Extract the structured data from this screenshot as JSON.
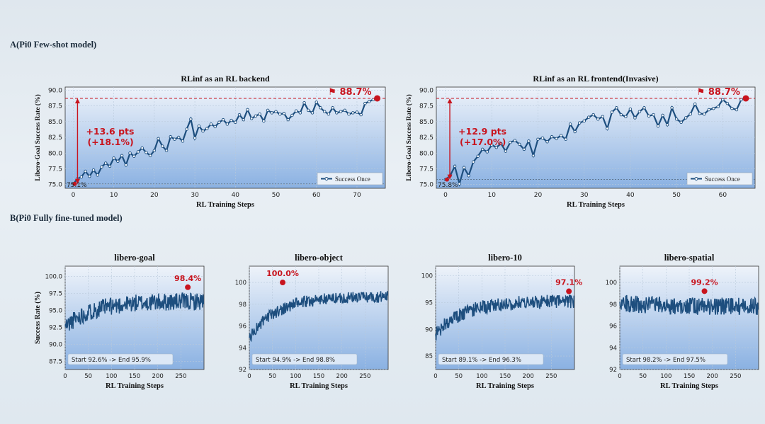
{
  "sections": {
    "a_title": "A(Pi0 Few-shot model)",
    "b_title": "B(Pi0 Fully fine-tuned model)"
  },
  "colors": {
    "line": "#1d4e7e",
    "red": "#c8141e",
    "bg_top": "#eef3fa",
    "bg_bottom": "#8ab1e2"
  },
  "chart_data": [
    {
      "type": "line",
      "title": "RLinf as an RL backend",
      "xlabel": "RL Training Steps",
      "ylabel": "Libero-Goal Success Rate (%)",
      "xlim": [
        -2,
        77
      ],
      "ylim": [
        74.4,
        90.5
      ],
      "xticks": [
        0,
        10,
        20,
        30,
        40,
        50,
        60,
        70
      ],
      "yticks": [
        75.0,
        77.5,
        80.0,
        82.5,
        85.0,
        87.5,
        90.0
      ],
      "legend": "Success Once",
      "legend_position": "lower-right",
      "peak_label": "⚑ 88.7%",
      "peak": [
        75,
        88.7
      ],
      "start_label": "75.1%",
      "start_value": 75.1,
      "end_value": 88.7,
      "gain_line1": "+13.6 pts",
      "gain_line2": "(+18.1%)",
      "x": [
        0,
        1,
        2,
        3,
        4,
        5,
        6,
        7,
        8,
        9,
        10,
        11,
        12,
        13,
        14,
        15,
        16,
        17,
        18,
        19,
        20,
        21,
        22,
        23,
        24,
        25,
        26,
        27,
        28,
        29,
        30,
        31,
        32,
        33,
        34,
        35,
        36,
        37,
        38,
        39,
        40,
        41,
        42,
        43,
        44,
        45,
        46,
        47,
        48,
        49,
        50,
        51,
        52,
        53,
        54,
        55,
        56,
        57,
        58,
        59,
        60,
        61,
        62,
        63,
        64,
        65,
        66,
        67,
        68,
        69,
        70,
        71,
        72,
        73,
        74,
        75
      ],
      "y": [
        75.1,
        75.9,
        76.2,
        77.1,
        76.3,
        77.3,
        76.5,
        77.8,
        78.4,
        77.9,
        79.2,
        78.7,
        79.6,
        78.1,
        80.0,
        79.5,
        80.2,
        80.8,
        80.1,
        79.6,
        80.4,
        82.3,
        81.1,
        80.4,
        82.6,
        82.2,
        82.5,
        81.9,
        83.8,
        85.4,
        82.4,
        84.3,
        83.5,
        83.9,
        84.6,
        84.2,
        84.9,
        85.3,
        84.6,
        85.2,
        84.9,
        86.1,
        85.3,
        86.9,
        85.5,
        85.9,
        86.2,
        85.1,
        86.8,
        86.4,
        86.6,
        86.2,
        86.3,
        85.3,
        86.0,
        86.7,
        86.4,
        88.0,
        86.8,
        86.4,
        88.1,
        87.2,
        86.6,
        86.2,
        87.2,
        86.4,
        86.6,
        86.8,
        86.2,
        86.4,
        86.5,
        86.1,
        87.9,
        88.2,
        88.5,
        88.7
      ]
    },
    {
      "type": "line",
      "title": "RLinf as an RL frontend(Invasive)",
      "xlabel": "RL Training Steps",
      "ylabel": "Libero-Goal Success Rate (%)",
      "xlim": [
        -2,
        67
      ],
      "ylim": [
        74.4,
        90.5
      ],
      "xticks": [
        0,
        10,
        20,
        30,
        40,
        50,
        60
      ],
      "yticks": [
        75.0,
        77.5,
        80.0,
        82.5,
        85.0,
        87.5,
        90.0
      ],
      "legend": "Success Once",
      "legend_position": "lower-right",
      "peak_label": "⚑ 88.7%",
      "peak": [
        65,
        88.7
      ],
      "start_label": "75.8%",
      "start_value": 75.8,
      "end_value": 88.7,
      "gain_line1": "+12.9 pts",
      "gain_line2": "(+17.0%)",
      "x": [
        0,
        1,
        2,
        3,
        4,
        5,
        6,
        7,
        8,
        9,
        10,
        11,
        12,
        13,
        14,
        15,
        16,
        17,
        18,
        19,
        20,
        21,
        22,
        23,
        24,
        25,
        26,
        27,
        28,
        29,
        30,
        31,
        32,
        33,
        34,
        35,
        36,
        37,
        38,
        39,
        40,
        41,
        42,
        43,
        44,
        45,
        46,
        47,
        48,
        49,
        50,
        51,
        52,
        53,
        54,
        55,
        56,
        57,
        58,
        59,
        60,
        61,
        62,
        63,
        64,
        65
      ],
      "y": [
        75.8,
        76.4,
        77.9,
        75.1,
        77.7,
        76.4,
        78.6,
        79.5,
        80.6,
        80.2,
        81.3,
        80.9,
        81.5,
        80.3,
        81.7,
        82.0,
        81.4,
        80.6,
        81.9,
        79.6,
        82.2,
        82.4,
        81.8,
        82.6,
        82.3,
        82.8,
        82.2,
        84.6,
        83.4,
        84.8,
        85.1,
        85.7,
        86.1,
        85.4,
        85.8,
        83.9,
        86.5,
        87.2,
        86.1,
        85.8,
        87.0,
        85.6,
        86.6,
        87.2,
        85.9,
        86.1,
        84.3,
        86.0,
        84.5,
        87.2,
        85.4,
        84.9,
        85.6,
        86.2,
        87.8,
        86.3,
        86.2,
        86.9,
        87.1,
        87.4,
        88.5,
        87.9,
        87.1,
        86.9,
        88.5,
        88.7
      ]
    },
    {
      "type": "line",
      "title": "libero-goal",
      "xlabel": "RL Training Steps",
      "ylabel": "Success Rate (%)",
      "xlim": [
        0,
        300
      ],
      "ylim": [
        86.3,
        101.5
      ],
      "xticks": [
        0,
        50,
        100,
        150,
        200,
        250
      ],
      "yticks": [
        87.5,
        90.0,
        92.5,
        95.0,
        97.5,
        100.0
      ],
      "peak_label": "98.4%",
      "peak": [
        265,
        98.4
      ],
      "note": "Start 92.6% -> End 95.9%",
      "start": 92.6,
      "end": 95.9,
      "n": 300,
      "trend_end": 96.3,
      "noise": 1.3,
      "seed": 11
    },
    {
      "type": "line",
      "title": "libero-object",
      "xlabel": "RL Training Steps",
      "ylabel": "",
      "xlim": [
        0,
        300
      ],
      "ylim": [
        92,
        101.5
      ],
      "xticks": [
        0,
        50,
        100,
        150,
        200,
        250
      ],
      "yticks": [
        92,
        94,
        96,
        98,
        100
      ],
      "peak_label": "100.0%",
      "peak": [
        72,
        100.0
      ],
      "note": "Start 94.9% -> End 98.8%",
      "start": 94.9,
      "end": 98.8,
      "n": 300,
      "trend_end": 98.7,
      "noise": 0.55,
      "seed": 23
    },
    {
      "type": "line",
      "title": "libero-10",
      "xlabel": "RL Training Steps",
      "ylabel": "",
      "xlim": [
        0,
        300
      ],
      "ylim": [
        82.5,
        101.8
      ],
      "xticks": [
        0,
        50,
        100,
        150,
        200,
        250
      ],
      "yticks": [
        85,
        90,
        95,
        100
      ],
      "peak_label": "97.1%",
      "peak": [
        288,
        97.1
      ],
      "note": "Start 89.1% -> End 96.3%",
      "start": 89.1,
      "end": 96.3,
      "n": 300,
      "trend_end": 95.2,
      "noise": 1.3,
      "seed": 37
    },
    {
      "type": "line",
      "title": "libero-spatial",
      "xlabel": "RL Training Steps",
      "ylabel": "",
      "xlim": [
        0,
        300
      ],
      "ylim": [
        92,
        101.5
      ],
      "xticks": [
        0,
        50,
        100,
        150,
        200,
        250
      ],
      "yticks": [
        92,
        94,
        96,
        98,
        100
      ],
      "peak_label": "99.2%",
      "peak": [
        183,
        99.2
      ],
      "note": "Start 98.2% -> End 97.5%",
      "start": 98.2,
      "end": 97.5,
      "n": 300,
      "trend_end": 97.8,
      "noise": 0.8,
      "seed": 53
    }
  ]
}
